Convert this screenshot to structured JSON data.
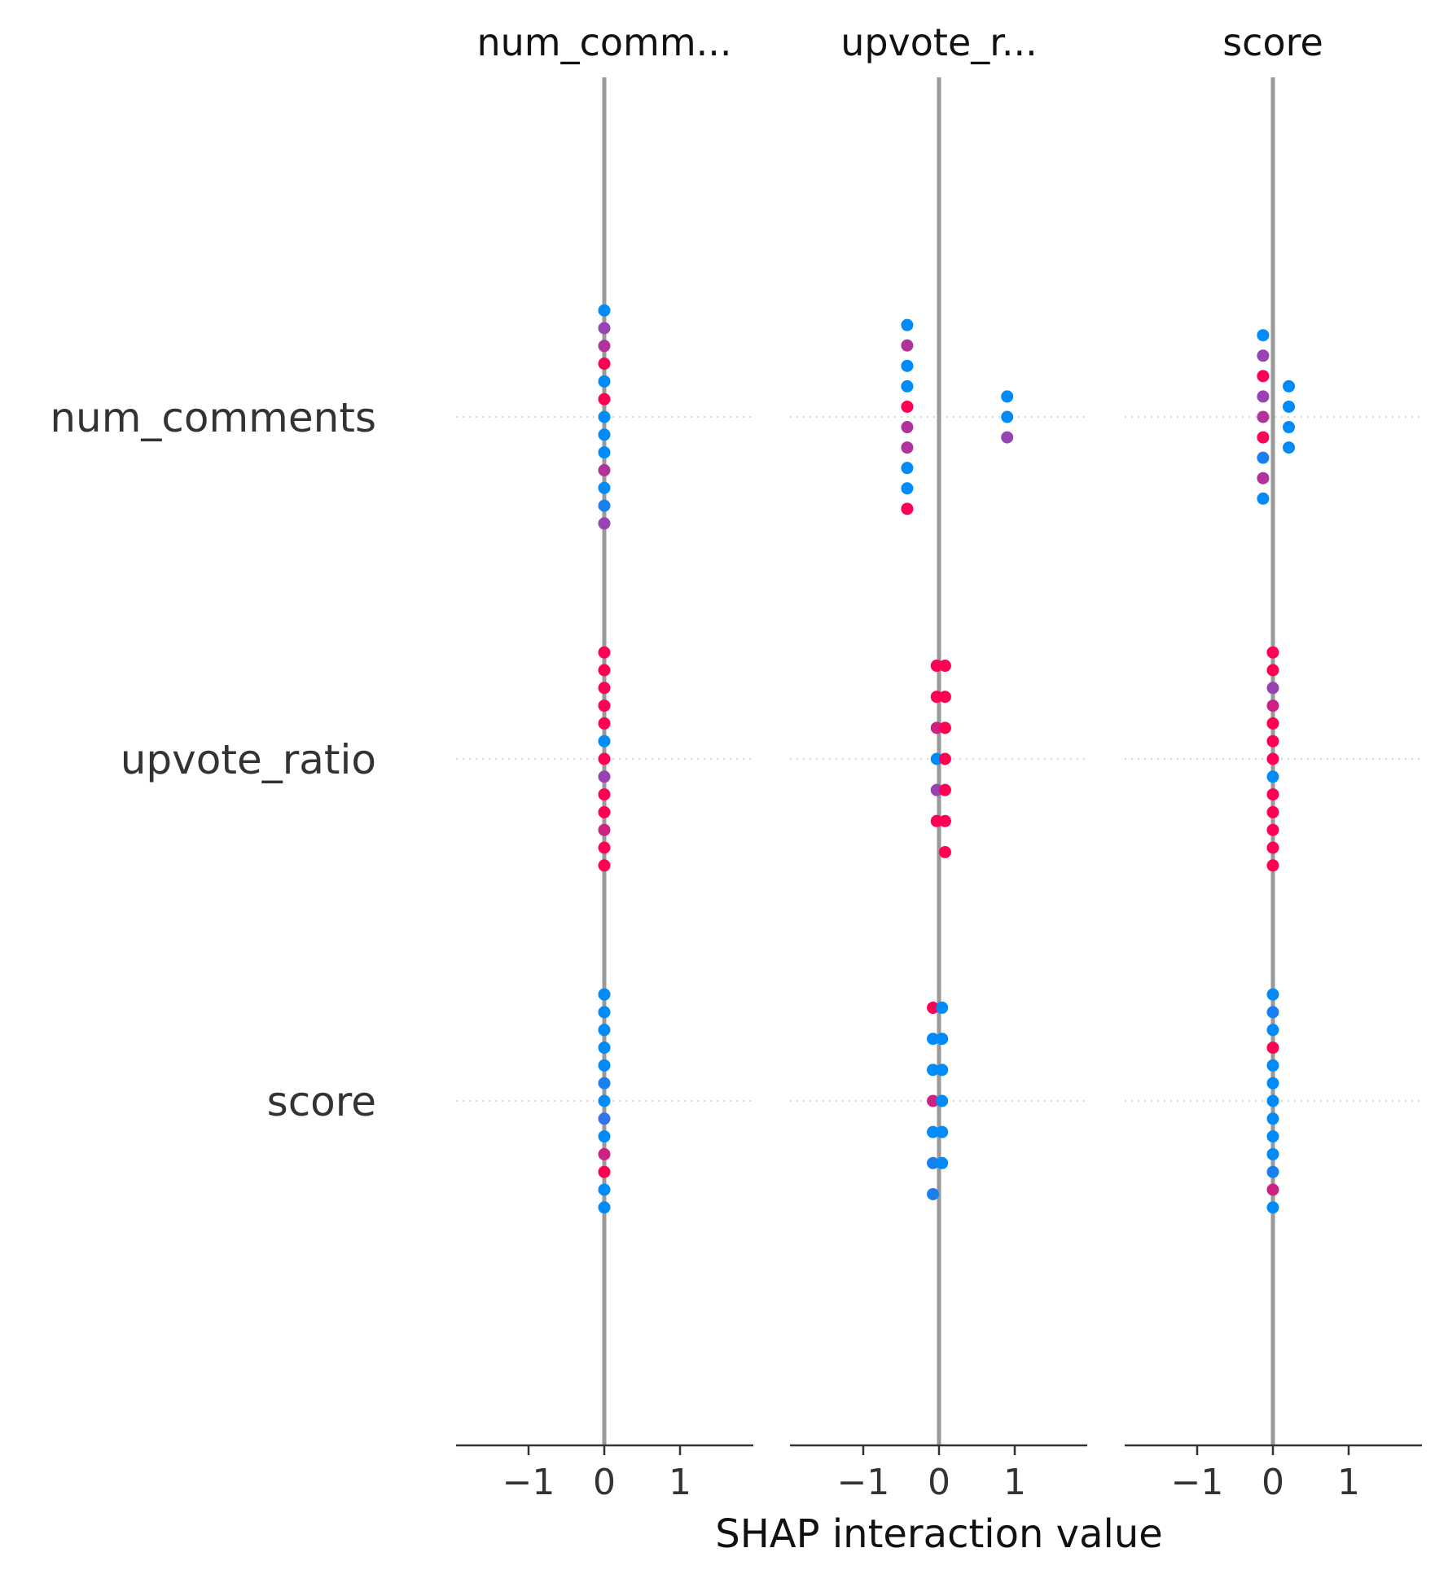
{
  "chart_data": {
    "type": "scatter",
    "xlabel": "SHAP interaction value",
    "xlim": [
      -1.95,
      1.95
    ],
    "xticks": [
      -1,
      0,
      1
    ],
    "xtick_labels": [
      "−1",
      "0",
      "1"
    ],
    "grid": false,
    "column_titles": [
      "num_comm...",
      "upvote_r...",
      "score"
    ],
    "row_labels": [
      "num_comments",
      "upvote_ratio",
      "score"
    ],
    "colors": {
      "low": "#008bfb",
      "high": "#ff0052",
      "zero_line": "#999999",
      "row_grid": "#cccccc",
      "axis": "#333333"
    },
    "panels": [
      {
        "column": "num_comm...",
        "rows": [
          {
            "row": "num_comments",
            "points": [
              {
                "x": 0,
                "c": 0.0
              },
              {
                "x": 0,
                "c": 0.6
              },
              {
                "x": 0,
                "c": 0.7
              },
              {
                "x": 0,
                "c": 1.0
              },
              {
                "x": 0,
                "c": 0.0
              },
              {
                "x": 0,
                "c": 1.0
              },
              {
                "x": 0,
                "c": 0.0
              },
              {
                "x": 0,
                "c": 0.0
              },
              {
                "x": 0,
                "c": 0.0
              },
              {
                "x": 0,
                "c": 0.7
              },
              {
                "x": 0,
                "c": 0.0
              },
              {
                "x": 0,
                "c": 0.1
              },
              {
                "x": 0,
                "c": 0.6
              }
            ]
          },
          {
            "row": "upvote_ratio",
            "points": [
              {
                "x": 0,
                "c": 1.0
              },
              {
                "x": 0,
                "c": 1.0
              },
              {
                "x": 0,
                "c": 1.0
              },
              {
                "x": 0,
                "c": 1.0
              },
              {
                "x": 0,
                "c": 1.0
              },
              {
                "x": 0,
                "c": 0.0
              },
              {
                "x": 0,
                "c": 1.0
              },
              {
                "x": 0,
                "c": 0.6
              },
              {
                "x": 0,
                "c": 1.0
              },
              {
                "x": 0,
                "c": 1.0
              },
              {
                "x": 0,
                "c": 0.8
              },
              {
                "x": 0,
                "c": 1.0
              },
              {
                "x": 0,
                "c": 1.0
              }
            ]
          },
          {
            "row": "score",
            "points": [
              {
                "x": 0,
                "c": 0.0
              },
              {
                "x": 0,
                "c": 0.0
              },
              {
                "x": 0,
                "c": 0.0
              },
              {
                "x": 0,
                "c": 0.0
              },
              {
                "x": 0,
                "c": 0.0
              },
              {
                "x": 0,
                "c": 0.1
              },
              {
                "x": 0,
                "c": 0.0
              },
              {
                "x": 0,
                "c": 0.2
              },
              {
                "x": 0,
                "c": 0.0
              },
              {
                "x": 0,
                "c": 0.8
              },
              {
                "x": 0,
                "c": 1.0
              },
              {
                "x": 0,
                "c": 0.0
              },
              {
                "x": 0,
                "c": 0.0
              }
            ]
          }
        ]
      },
      {
        "column": "upvote_r...",
        "rows": [
          {
            "row": "num_comments",
            "points": [
              {
                "x": -0.42,
                "c": 0.0
              },
              {
                "x": -0.42,
                "c": 0.7
              },
              {
                "x": -0.42,
                "c": 0.0
              },
              {
                "x": -0.42,
                "c": 0.0
              },
              {
                "x": -0.42,
                "c": 1.0
              },
              {
                "x": -0.42,
                "c": 0.7
              },
              {
                "x": -0.42,
                "c": 0.7
              },
              {
                "x": -0.42,
                "c": 0.0
              },
              {
                "x": -0.42,
                "c": 0.0
              },
              {
                "x": -0.42,
                "c": 1.0
              },
              {
                "x": 0.9,
                "c": 0.0
              },
              {
                "x": 0.9,
                "c": 0.0
              },
              {
                "x": 0.9,
                "c": 0.6
              }
            ]
          },
          {
            "row": "upvote_ratio",
            "points": [
              {
                "x": -0.03,
                "c": 1.0
              },
              {
                "x": 0.08,
                "c": 1.0
              },
              {
                "x": -0.03,
                "c": 1.0
              },
              {
                "x": 0.08,
                "c": 1.0
              },
              {
                "x": -0.03,
                "c": 0.8
              },
              {
                "x": 0.08,
                "c": 1.0
              },
              {
                "x": -0.03,
                "c": 0.0
              },
              {
                "x": 0.08,
                "c": 1.0
              },
              {
                "x": -0.03,
                "c": 0.6
              },
              {
                "x": 0.08,
                "c": 1.0
              },
              {
                "x": -0.03,
                "c": 1.0
              },
              {
                "x": 0.08,
                "c": 1.0
              },
              {
                "x": 0.08,
                "c": 1.0
              }
            ]
          },
          {
            "row": "score",
            "points": [
              {
                "x": -0.08,
                "c": 1.0
              },
              {
                "x": 0.04,
                "c": 0.0
              },
              {
                "x": -0.08,
                "c": 0.0
              },
              {
                "x": 0.04,
                "c": 0.0
              },
              {
                "x": -0.08,
                "c": 0.0
              },
              {
                "x": 0.04,
                "c": 0.0
              },
              {
                "x": -0.08,
                "c": 0.8
              },
              {
                "x": 0.04,
                "c": 0.0
              },
              {
                "x": -0.08,
                "c": 0.0
              },
              {
                "x": 0.04,
                "c": 0.0
              },
              {
                "x": -0.08,
                "c": 0.1
              },
              {
                "x": 0.04,
                "c": 0.0
              },
              {
                "x": -0.08,
                "c": 0.1
              }
            ]
          }
        ]
      },
      {
        "column": "score",
        "rows": [
          {
            "row": "num_comments",
            "points": [
              {
                "x": -0.13,
                "c": 0.0
              },
              {
                "x": -0.13,
                "c": 0.6
              },
              {
                "x": -0.13,
                "c": 1.0
              },
              {
                "x": -0.13,
                "c": 0.6
              },
              {
                "x": -0.13,
                "c": 0.7
              },
              {
                "x": -0.13,
                "c": 1.0
              },
              {
                "x": -0.13,
                "c": 0.1
              },
              {
                "x": -0.13,
                "c": 0.7
              },
              {
                "x": -0.13,
                "c": 0.0
              },
              {
                "x": 0.21,
                "c": 0.0
              },
              {
                "x": 0.21,
                "c": 0.0
              },
              {
                "x": 0.21,
                "c": 0.0
              },
              {
                "x": 0.21,
                "c": 0.0
              }
            ]
          },
          {
            "row": "upvote_ratio",
            "points": [
              {
                "x": 0,
                "c": 1.0
              },
              {
                "x": 0,
                "c": 1.0
              },
              {
                "x": 0,
                "c": 0.6
              },
              {
                "x": 0,
                "c": 0.8
              },
              {
                "x": 0,
                "c": 1.0
              },
              {
                "x": 0,
                "c": 1.0
              },
              {
                "x": 0,
                "c": 1.0
              },
              {
                "x": 0,
                "c": 0.0
              },
              {
                "x": 0,
                "c": 1.0
              },
              {
                "x": 0,
                "c": 1.0
              },
              {
                "x": 0,
                "c": 1.0
              },
              {
                "x": 0,
                "c": 1.0
              },
              {
                "x": 0,
                "c": 1.0
              }
            ]
          },
          {
            "row": "score",
            "points": [
              {
                "x": 0,
                "c": 0.0
              },
              {
                "x": 0,
                "c": 0.1
              },
              {
                "x": 0,
                "c": 0.0
              },
              {
                "x": 0,
                "c": 1.0
              },
              {
                "x": 0,
                "c": 0.0
              },
              {
                "x": 0,
                "c": 0.0
              },
              {
                "x": 0,
                "c": 0.0
              },
              {
                "x": 0,
                "c": 0.0
              },
              {
                "x": 0,
                "c": 0.0
              },
              {
                "x": 0,
                "c": 0.0
              },
              {
                "x": 0,
                "c": 0.1
              },
              {
                "x": 0,
                "c": 0.8
              },
              {
                "x": 0,
                "c": 0.0
              }
            ]
          }
        ]
      }
    ]
  }
}
